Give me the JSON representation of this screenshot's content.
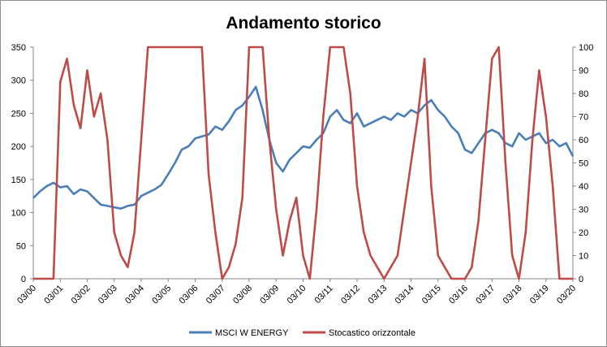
{
  "chart_data": {
    "type": "line",
    "title": "Andamento storico",
    "xlabel": "",
    "ylabel_left": "",
    "ylabel_right": "",
    "x_ticks": [
      "03/00",
      "03/01",
      "03/02",
      "03/03",
      "03/04",
      "03/05",
      "03/06",
      "03/07",
      "03/08",
      "03/09",
      "03/10",
      "03/11",
      "03/12",
      "03/13",
      "03/14",
      "03/15",
      "03/16",
      "03/17",
      "03/18",
      "03/19",
      "03/20"
    ],
    "y_left": {
      "min": 0,
      "max": 350,
      "ticks": [
        0,
        50,
        100,
        150,
        200,
        250,
        300,
        350
      ]
    },
    "y_right": {
      "min": 0,
      "max": 100,
      "ticks": [
        0,
        10,
        20,
        30,
        40,
        50,
        60,
        70,
        80,
        90,
        100
      ]
    },
    "grid": false,
    "legend_position": "bottom",
    "series": [
      {
        "name": "MSCI W ENERGY",
        "axis": "left",
        "color": "#4a7ebb",
        "x": [
          "03/00",
          "06/00",
          "09/00",
          "12/00",
          "03/01",
          "06/01",
          "09/01",
          "12/01",
          "03/02",
          "06/02",
          "09/02",
          "12/02",
          "03/03",
          "06/03",
          "09/03",
          "12/03",
          "03/04",
          "06/04",
          "09/04",
          "12/04",
          "03/05",
          "06/05",
          "09/05",
          "12/05",
          "03/06",
          "06/06",
          "09/06",
          "12/06",
          "03/07",
          "06/07",
          "09/07",
          "12/07",
          "03/08",
          "06/08",
          "09/08",
          "12/08",
          "03/09",
          "06/09",
          "09/09",
          "12/09",
          "03/10",
          "06/10",
          "09/10",
          "12/10",
          "03/11",
          "06/11",
          "09/11",
          "12/11",
          "03/12",
          "06/12",
          "09/12",
          "12/12",
          "03/13",
          "06/13",
          "09/13",
          "12/13",
          "03/14",
          "06/14",
          "09/14",
          "12/14",
          "03/15",
          "06/15",
          "09/15",
          "12/15",
          "03/16",
          "06/16",
          "09/16",
          "12/16",
          "03/17",
          "06/17",
          "09/17",
          "12/17",
          "03/18",
          "06/18",
          "09/18",
          "12/18",
          "03/19",
          "06/19",
          "09/19",
          "12/19",
          "03/20"
        ],
        "values": [
          122,
          132,
          140,
          145,
          138,
          140,
          128,
          135,
          132,
          122,
          112,
          110,
          108,
          106,
          110,
          112,
          125,
          130,
          135,
          142,
          158,
          175,
          195,
          200,
          212,
          215,
          218,
          230,
          225,
          238,
          255,
          262,
          275,
          290,
          255,
          210,
          175,
          162,
          180,
          190,
          200,
          198,
          210,
          220,
          245,
          255,
          240,
          235,
          250,
          230,
          235,
          240,
          245,
          240,
          250,
          245,
          255,
          250,
          262,
          270,
          255,
          245,
          230,
          220,
          195,
          190,
          205,
          220,
          225,
          220,
          205,
          200,
          220,
          210,
          215,
          220,
          205,
          210,
          200,
          205,
          185
        ]
      },
      {
        "name": "Stocastico orizzontale",
        "axis": "right",
        "color": "#be4b48",
        "x": [
          "03/00",
          "06/00",
          "09/00",
          "12/00",
          "03/01",
          "06/01",
          "09/01",
          "12/01",
          "03/02",
          "06/02",
          "09/02",
          "12/02",
          "03/03",
          "06/03",
          "09/03",
          "12/03",
          "03/04",
          "06/04",
          "09/04",
          "12/04",
          "03/05",
          "06/05",
          "09/05",
          "12/05",
          "03/06",
          "06/06",
          "09/06",
          "12/06",
          "03/07",
          "06/07",
          "09/07",
          "12/07",
          "03/08",
          "06/08",
          "09/08",
          "12/08",
          "03/09",
          "06/09",
          "09/09",
          "12/09",
          "03/10",
          "06/10",
          "09/10",
          "12/10",
          "03/11",
          "06/11",
          "09/11",
          "12/11",
          "03/12",
          "06/12",
          "09/12",
          "12/12",
          "03/13",
          "06/13",
          "09/13",
          "12/13",
          "03/14",
          "06/14",
          "09/14",
          "12/14",
          "03/15",
          "06/15",
          "09/15",
          "12/15",
          "03/16",
          "06/16",
          "09/16",
          "12/16",
          "03/17",
          "06/17",
          "09/17",
          "12/17",
          "03/18",
          "06/18",
          "09/18",
          "12/18",
          "03/19",
          "06/19",
          "09/19",
          "12/19",
          "03/20"
        ],
        "values": [
          0,
          0,
          0,
          0,
          85,
          95,
          75,
          65,
          90,
          70,
          80,
          60,
          20,
          10,
          5,
          20,
          60,
          100,
          100,
          100,
          100,
          100,
          100,
          100,
          100,
          100,
          45,
          20,
          0,
          5,
          15,
          35,
          100,
          100,
          100,
          60,
          30,
          10,
          25,
          35,
          10,
          0,
          30,
          70,
          100,
          100,
          100,
          80,
          40,
          20,
          10,
          5,
          0,
          5,
          10,
          30,
          50,
          70,
          95,
          40,
          10,
          5,
          0,
          0,
          0,
          5,
          25,
          60,
          95,
          100,
          50,
          10,
          0,
          20,
          60,
          90,
          70,
          40,
          0,
          0,
          0
        ]
      }
    ]
  }
}
